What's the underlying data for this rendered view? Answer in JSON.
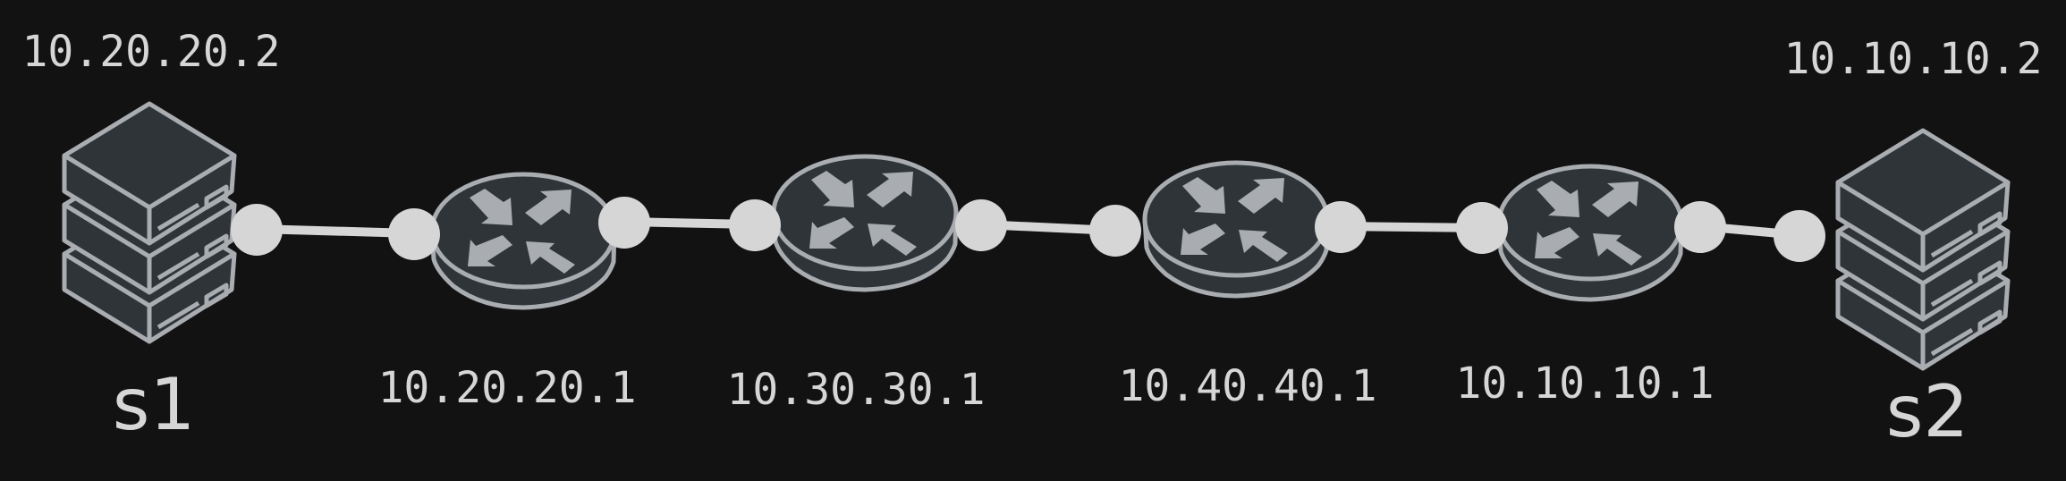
{
  "diagram": {
    "servers": [
      {
        "name": "s1",
        "ip": "10.20.20.2"
      },
      {
        "name": "s2",
        "ip": "10.10.10.2"
      }
    ],
    "routers": [
      {
        "ip": "10.20.20.1"
      },
      {
        "ip": "10.30.30.1"
      },
      {
        "ip": "10.40.40.1"
      },
      {
        "ip": "10.10.10.1"
      }
    ]
  },
  "colors": {
    "background": "#121212",
    "device_fill": "#2f3438",
    "device_stroke": "#a9adb1",
    "link": "#d6d6d6",
    "text": "#d6d6d6"
  },
  "icons": {
    "server": "server-stack-icon",
    "router": "router-icon"
  }
}
